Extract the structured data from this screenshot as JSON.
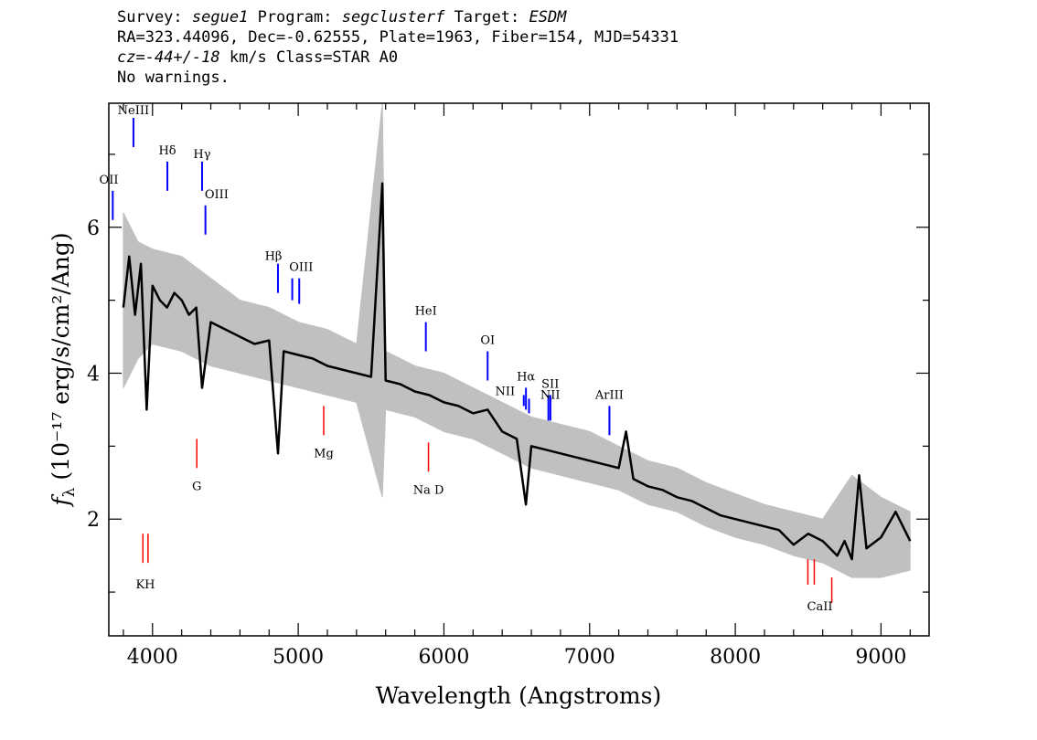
{
  "header": {
    "survey_label": "Survey:",
    "survey": "segue1",
    "program_label": "Program:",
    "program": "segclusterf",
    "target_label": "Target:",
    "target": "ESDM",
    "line2": "RA=323.44096, Dec=-0.62555, Plate=1963, Fiber=154, MJD=54331",
    "cz_label": "cz=",
    "cz_value": "-44+/-18",
    "cz_units": " km/s Class=STAR A0",
    "warnings": "No warnings."
  },
  "chart_data": {
    "type": "line",
    "title": "",
    "xlabel": "Wavelength (Angstroms)",
    "ylabel_prefix": "f",
    "ylabel_sub": "λ",
    "ylabel_rest": "(10⁻¹⁷ erg/s/cm²/Ang)",
    "xlim": [
      3700,
      9330
    ],
    "ylim": [
      0.4,
      7.7
    ],
    "x_ticks": [
      4000,
      5000,
      6000,
      7000,
      8000,
      9000
    ],
    "x_tick_labels": [
      "4000",
      "5000",
      "6000",
      "7000",
      "8000",
      "9000"
    ],
    "y_ticks": [
      2,
      4,
      6
    ],
    "y_tick_labels": [
      "2",
      "4",
      "6"
    ],
    "colors": {
      "flux": "#000000",
      "error_band": "#c0c0c0",
      "emission": "#0000ff",
      "absorption": "#ff0000"
    },
    "series": [
      {
        "role": "flux",
        "x": [
          3800,
          3840,
          3880,
          3920,
          3960,
          4000,
          4050,
          4100,
          4150,
          4200,
          4250,
          4300,
          4340,
          4400,
          4500,
          4600,
          4700,
          4800,
          4861,
          4900,
          5000,
          5100,
          5200,
          5300,
          5400,
          5500,
          5577,
          5600,
          5700,
          5800,
          5900,
          6000,
          6100,
          6200,
          6300,
          6400,
          6500,
          6563,
          6600,
          6700,
          6800,
          6900,
          7000,
          7100,
          7200,
          7250,
          7300,
          7400,
          7500,
          7600,
          7700,
          7800,
          7900,
          8000,
          8100,
          8200,
          8300,
          8400,
          8500,
          8600,
          8700,
          8750,
          8800,
          8850,
          8900,
          9000,
          9100,
          9200
        ],
        "y": [
          4.9,
          5.6,
          4.8,
          5.5,
          3.5,
          5.2,
          5.0,
          4.9,
          5.1,
          5.0,
          4.8,
          4.9,
          3.8,
          4.7,
          4.6,
          4.5,
          4.4,
          4.45,
          2.9,
          4.3,
          4.25,
          4.2,
          4.1,
          4.05,
          4.0,
          3.95,
          6.6,
          3.9,
          3.85,
          3.75,
          3.7,
          3.6,
          3.55,
          3.45,
          3.5,
          3.2,
          3.1,
          2.2,
          3.0,
          2.95,
          2.9,
          2.85,
          2.8,
          2.75,
          2.7,
          3.2,
          2.55,
          2.45,
          2.4,
          2.3,
          2.25,
          2.15,
          2.05,
          2.0,
          1.95,
          1.9,
          1.85,
          1.65,
          1.8,
          1.7,
          1.5,
          1.7,
          1.45,
          2.6,
          1.6,
          1.75,
          2.1,
          1.7
        ]
      },
      {
        "role": "error_band",
        "x": [
          3800,
          3900,
          4000,
          4200,
          4400,
          4600,
          4800,
          5000,
          5200,
          5400,
          5577,
          5600,
          5800,
          6000,
          6200,
          6400,
          6600,
          6800,
          7000,
          7200,
          7400,
          7600,
          7800,
          8000,
          8200,
          8400,
          8600,
          8800,
          9000,
          9200
        ],
        "y_low": [
          3.8,
          4.2,
          4.4,
          4.3,
          4.1,
          4.0,
          3.9,
          3.8,
          3.7,
          3.6,
          2.3,
          3.5,
          3.4,
          3.2,
          3.1,
          2.9,
          2.7,
          2.6,
          2.5,
          2.4,
          2.2,
          2.1,
          1.9,
          1.75,
          1.65,
          1.5,
          1.4,
          1.2,
          1.2,
          1.3
        ],
        "y_high": [
          6.2,
          5.8,
          5.7,
          5.6,
          5.3,
          5.0,
          4.9,
          4.7,
          4.6,
          4.4,
          7.7,
          4.3,
          4.1,
          4.0,
          3.8,
          3.6,
          3.4,
          3.3,
          3.2,
          3.0,
          2.8,
          2.7,
          2.5,
          2.35,
          2.2,
          2.1,
          2.0,
          2.6,
          2.3,
          2.1
        ]
      }
    ],
    "emission_lines": [
      {
        "label": "OII",
        "x": 3727,
        "y0": 6.1,
        "y1": 6.5
      },
      {
        "label": "NeIII",
        "x": 3869,
        "y0": 7.1,
        "y1": 7.5
      },
      {
        "label": "Hδ",
        "x": 4102,
        "y0": 6.5,
        "y1": 6.9
      },
      {
        "label": "Hγ",
        "x": 4340,
        "y0": 6.5,
        "y1": 6.9
      },
      {
        "label": "OIII",
        "x": 4363,
        "y0": 5.9,
        "y1": 6.3
      },
      {
        "label": "Hβ",
        "x": 4861,
        "y0": 5.1,
        "y1": 5.5
      },
      {
        "label": "OIII",
        "x": 4959,
        "y0": 5.0,
        "y1": 5.3
      },
      {
        "label": "OIII",
        "x": 5007,
        "y0": 4.95,
        "y1": 5.3
      },
      {
        "label": "HeI",
        "x": 5876,
        "y0": 4.3,
        "y1": 4.7
      },
      {
        "label": "OI",
        "x": 6300,
        "y0": 3.9,
        "y1": 4.3
      },
      {
        "label": "NII",
        "x": 6548,
        "y0": 3.55,
        "y1": 3.7
      },
      {
        "label": "Hα",
        "x": 6563,
        "y0": 3.5,
        "y1": 3.8
      },
      {
        "label": "NII",
        "x": 6584,
        "y0": 3.45,
        "y1": 3.65
      },
      {
        "label": "SII",
        "x": 6717,
        "y0": 3.35,
        "y1": 3.7
      },
      {
        "label": "SII",
        "x": 6731,
        "y0": 3.35,
        "y1": 3.7
      },
      {
        "label": "ArIII",
        "x": 7136,
        "y0": 3.15,
        "y1": 3.55
      }
    ],
    "absorption_lines": [
      {
        "label": "K",
        "x": 3934,
        "y0": 1.4,
        "y1": 1.8
      },
      {
        "label": "H",
        "x": 3969,
        "y0": 1.4,
        "y1": 1.8
      },
      {
        "label": "G",
        "x": 4304,
        "y0": 2.7,
        "y1": 3.1
      },
      {
        "label": "Mg",
        "x": 5175,
        "y0": 3.15,
        "y1": 3.55
      },
      {
        "label": "Na",
        "x": 5894,
        "y0": 2.65,
        "y1": 3.05
      },
      {
        "label": "CaII",
        "x": 8498,
        "y0": 1.1,
        "y1": 1.45
      },
      {
        "label": "CaII",
        "x": 8542,
        "y0": 1.1,
        "y1": 1.45
      },
      {
        "label": "CaII",
        "x": 8662,
        "y0": 0.85,
        "y1": 1.2
      }
    ],
    "line_text_labels": [
      {
        "text": "OII",
        "x": 3700,
        "y": 6.6
      },
      {
        "text": "NeIII",
        "x": 3869,
        "y": 7.55
      },
      {
        "text": "Hδ",
        "x": 4102,
        "y": 7.0
      },
      {
        "text": "Hγ",
        "x": 4340,
        "y": 6.95
      },
      {
        "text": "OIII",
        "x": 4440,
        "y": 6.4
      },
      {
        "text": "Hβ",
        "x": 4830,
        "y": 5.55
      },
      {
        "text": "OIII",
        "x": 5020,
        "y": 5.4
      },
      {
        "text": "HeI",
        "x": 5876,
        "y": 4.8
      },
      {
        "text": "OI",
        "x": 6300,
        "y": 4.4
      },
      {
        "text": "NII",
        "x": 6420,
        "y": 3.7
      },
      {
        "text": "Hα",
        "x": 6563,
        "y": 3.9
      },
      {
        "text": "SII",
        "x": 6730,
        "y": 3.8
      },
      {
        "text": "NII",
        "x": 6730,
        "y": 3.65
      },
      {
        "text": "ArIII",
        "x": 7136,
        "y": 3.65
      },
      {
        "text": "KH",
        "x": 3951,
        "y": 1.05
      },
      {
        "text": "G",
        "x": 4304,
        "y": 2.4
      },
      {
        "text": "Mg",
        "x": 5175,
        "y": 2.85
      },
      {
        "text": "Na  D",
        "x": 5894,
        "y": 2.35
      },
      {
        "text": "CaII",
        "x": 8580,
        "y": 0.75
      }
    ]
  }
}
